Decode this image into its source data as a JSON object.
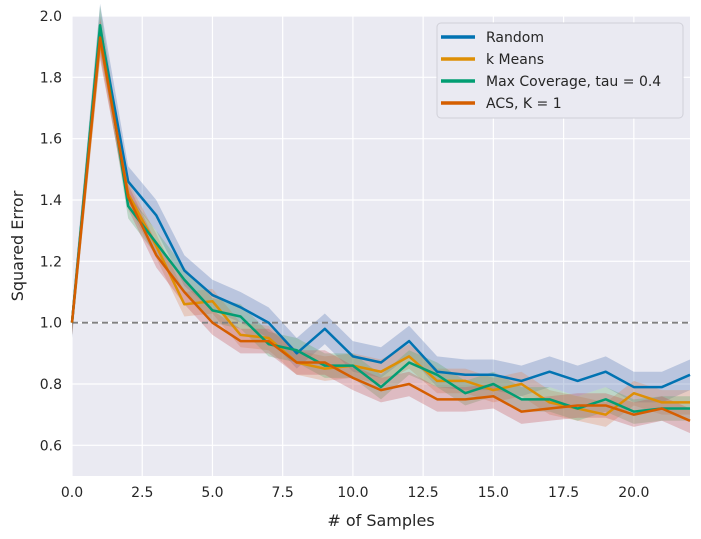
{
  "chart_data": {
    "type": "line",
    "title": "",
    "xlabel": "# of Samples",
    "ylabel": "Squared Error",
    "xlim": [
      0,
      22
    ],
    "ylim": [
      0.5,
      2.0
    ],
    "x_ticks": [
      "0.0",
      "2.5",
      "5.0",
      "7.5",
      "10.0",
      "12.5",
      "15.0",
      "17.5",
      "20.0"
    ],
    "x_tick_values": [
      0,
      2.5,
      5,
      7.5,
      10,
      12.5,
      15,
      17.5,
      20
    ],
    "y_ticks": [
      "0.6",
      "0.8",
      "1.0",
      "1.2",
      "1.4",
      "1.6",
      "1.8",
      "2.0"
    ],
    "y_tick_values": [
      0.6,
      0.8,
      1.0,
      1.2,
      1.4,
      1.6,
      1.8,
      2.0
    ],
    "grid": true,
    "background": "#eaeaf2",
    "legend_position": "top-right",
    "reference_line": {
      "y": 1.0,
      "style": "dashed",
      "color": "#808080"
    },
    "x": [
      0,
      1,
      2,
      3,
      4,
      5,
      6,
      7,
      8,
      9,
      10,
      11,
      12,
      13,
      14,
      15,
      16,
      17,
      18,
      19,
      20,
      21,
      22
    ],
    "series": [
      {
        "name": "Random",
        "color": "#0173b2",
        "band_color": "#4c72b0",
        "values": [
          1.0,
          1.96,
          1.46,
          1.35,
          1.17,
          1.09,
          1.05,
          1.0,
          0.9,
          0.98,
          0.89,
          0.87,
          0.94,
          0.84,
          0.83,
          0.83,
          0.81,
          0.84,
          0.81,
          0.84,
          0.79,
          0.79,
          0.83
        ],
        "band": 0.05
      },
      {
        "name": "k Means",
        "color": "#de8f05",
        "band_color": "#dd8452",
        "values": [
          1.0,
          1.92,
          1.42,
          1.25,
          1.06,
          1.07,
          0.96,
          0.95,
          0.87,
          0.85,
          0.86,
          0.84,
          0.89,
          0.81,
          0.81,
          0.78,
          0.8,
          0.74,
          0.72,
          0.7,
          0.77,
          0.74,
          0.74
        ],
        "band": 0.04
      },
      {
        "name": "Max Coverage, tau = 0.4",
        "color": "#029e73",
        "band_color": "#55a868",
        "values": [
          1.0,
          1.97,
          1.38,
          1.26,
          1.14,
          1.04,
          1.02,
          0.93,
          0.91,
          0.86,
          0.86,
          0.79,
          0.87,
          0.83,
          0.77,
          0.8,
          0.75,
          0.75,
          0.72,
          0.75,
          0.71,
          0.72,
          0.72
        ],
        "band": 0.04
      },
      {
        "name": "ACS, K = 1",
        "color": "#d55e00",
        "band_color": "#c44e52",
        "values": [
          1.0,
          1.93,
          1.41,
          1.22,
          1.1,
          1.0,
          0.94,
          0.94,
          0.87,
          0.87,
          0.82,
          0.78,
          0.8,
          0.75,
          0.75,
          0.76,
          0.71,
          0.72,
          0.73,
          0.73,
          0.7,
          0.72,
          0.68
        ],
        "band": 0.04
      }
    ]
  }
}
